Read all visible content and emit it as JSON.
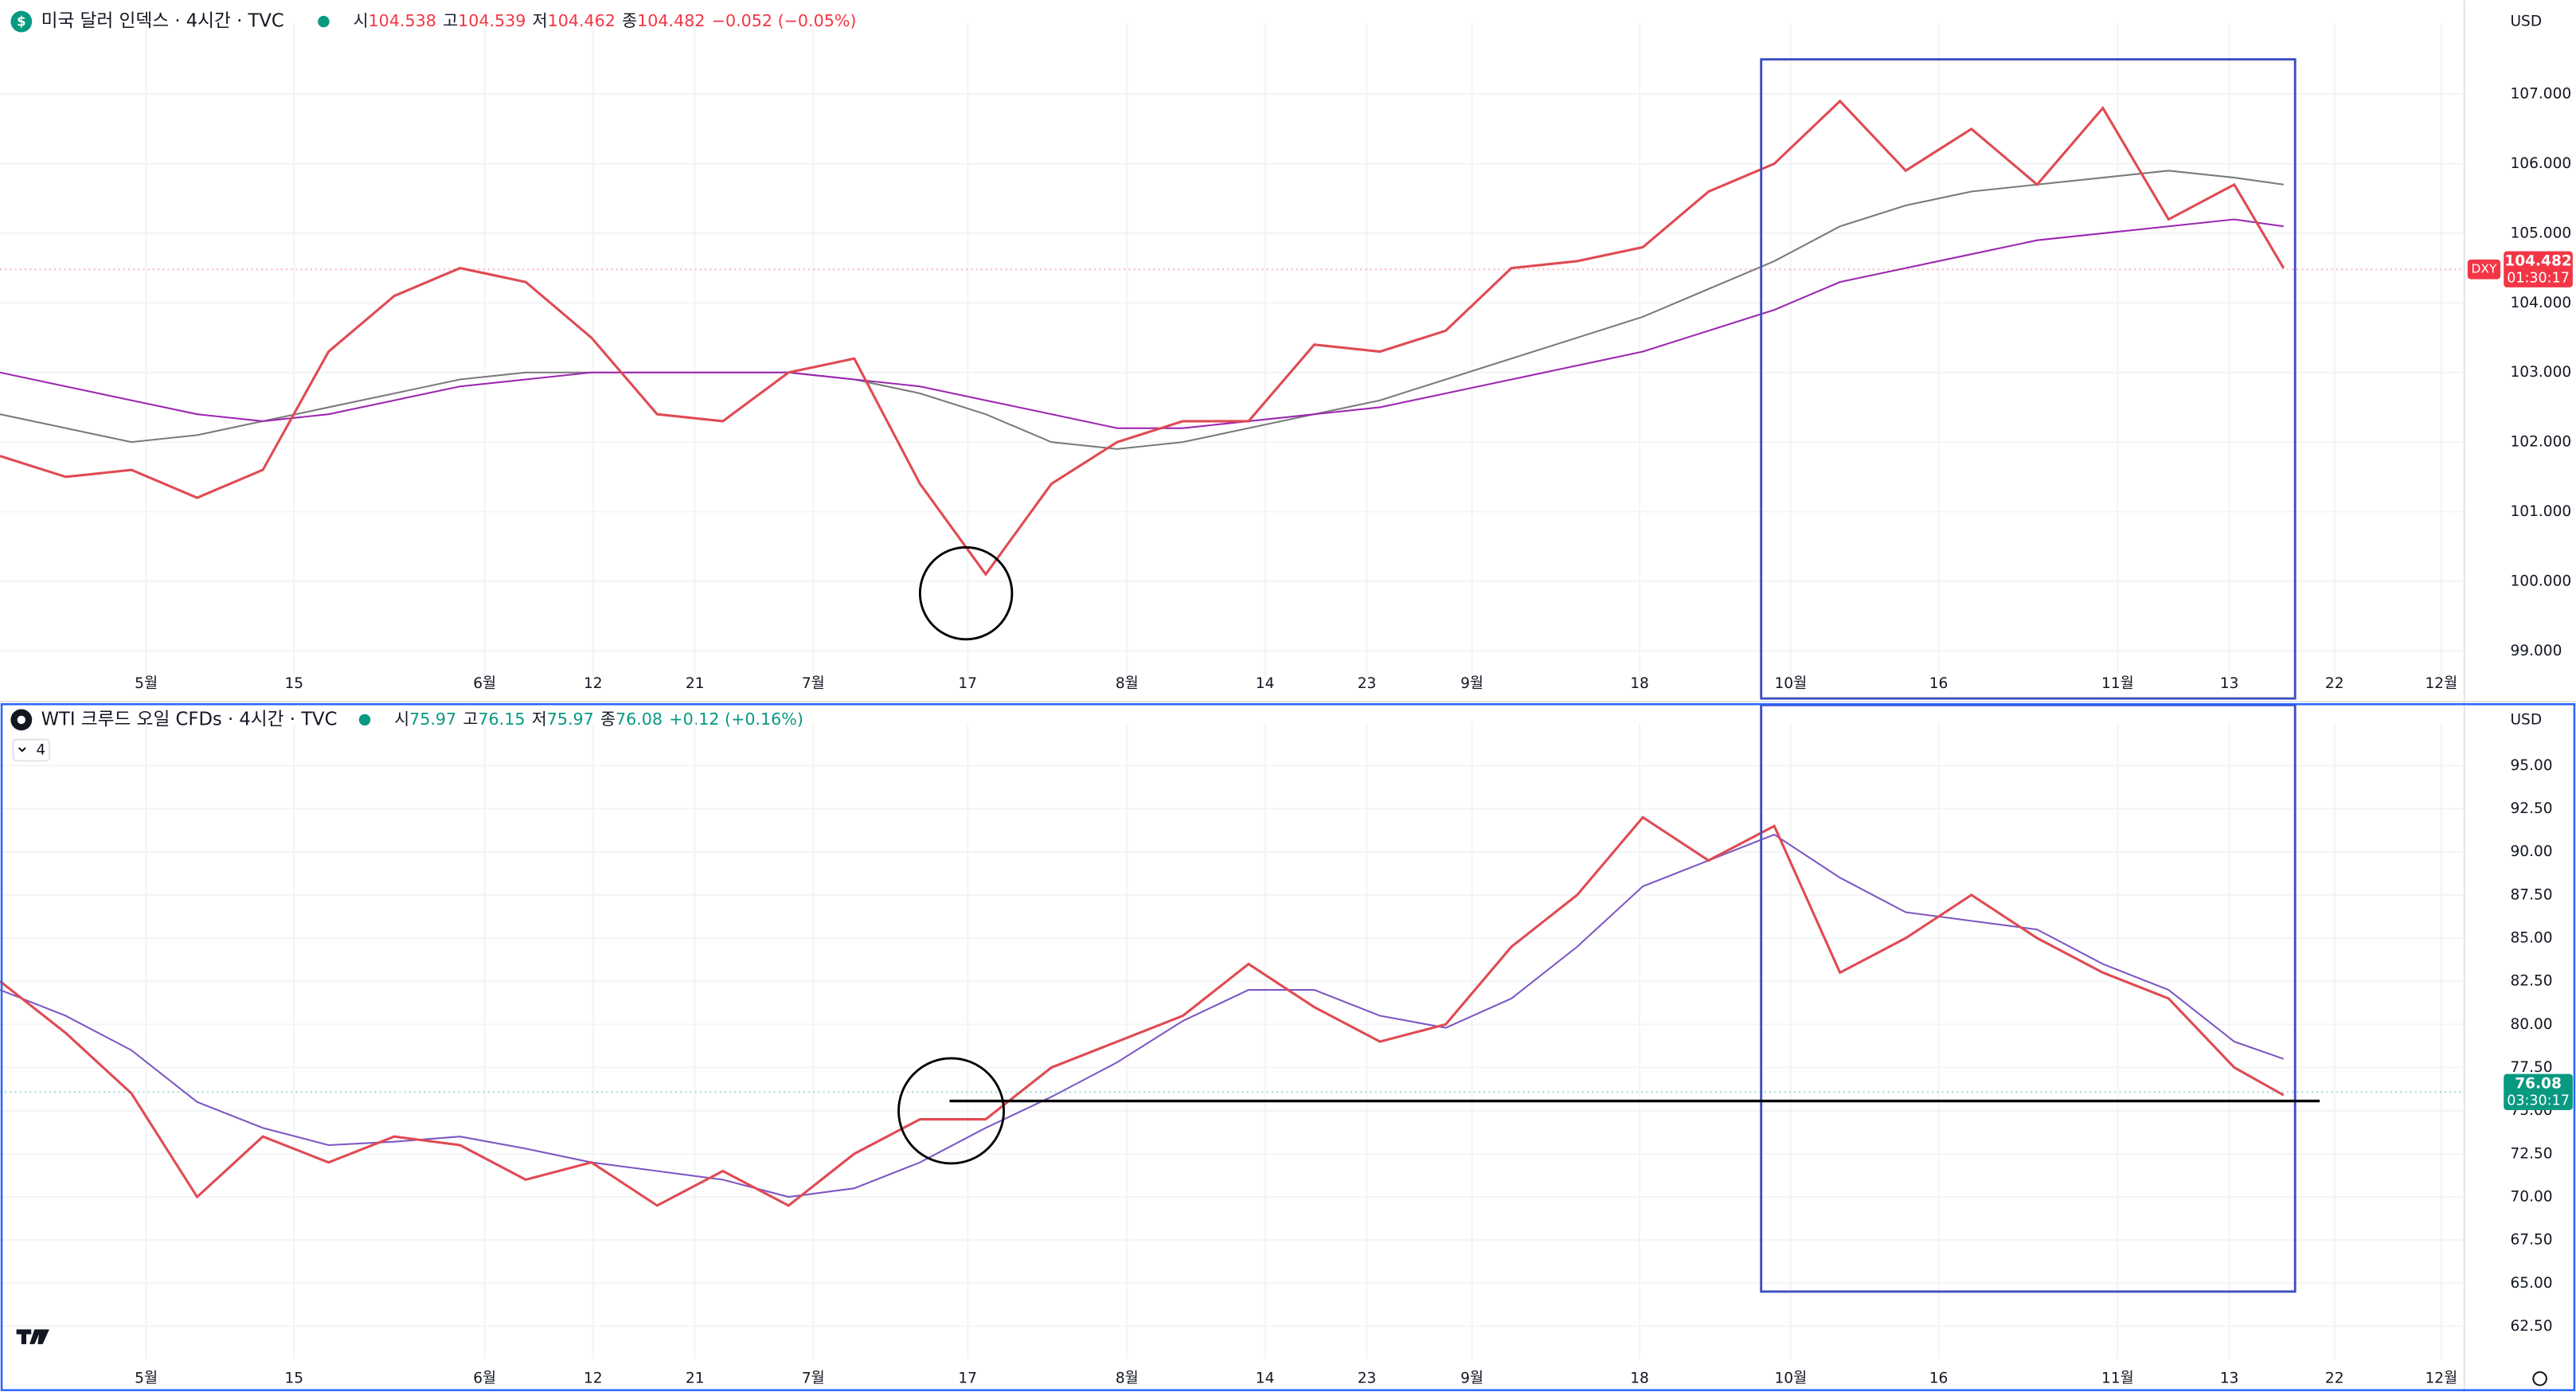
{
  "chart_data": [
    {
      "type": "line",
      "title": "미국 달러 인덱스 · 4시간 · TVC",
      "ohlc": {
        "open_label": "시",
        "open": 104.538,
        "high_label": "고",
        "high": 104.539,
        "low_label": "저",
        "low": 104.462,
        "close_label": "종",
        "close": 104.482,
        "change": "−0.052 (−0.05%)"
      },
      "currency": "USD",
      "symbol": "DXY",
      "last_price": 104.482,
      "countdown": "01:30:17",
      "change_color": "#f23645",
      "last_color": "#f23645",
      "grid": true,
      "xlim": [
        0,
        150
      ],
      "ylim": [
        98.67,
        107.83
      ],
      "yticks": [
        {
          "value": 99,
          "label": "99.000"
        },
        {
          "value": 100,
          "label": "100.000"
        },
        {
          "value": 101,
          "label": "101.000"
        },
        {
          "value": 102,
          "label": "102.000"
        },
        {
          "value": 103,
          "label": "103.000"
        },
        {
          "value": 104,
          "label": "104.000"
        },
        {
          "value": 105,
          "label": "105.000"
        },
        {
          "value": 106,
          "label": "106.000"
        },
        {
          "value": 107,
          "label": "107.000"
        }
      ],
      "xticks": [
        {
          "value": 8.9,
          "label": "5월"
        },
        {
          "value": 17.9,
          "label": "15"
        },
        {
          "value": 29.5,
          "label": "6월"
        },
        {
          "value": 36.1,
          "label": "12"
        },
        {
          "value": 42.3,
          "label": "21"
        },
        {
          "value": 49.5,
          "label": "7월"
        },
        {
          "value": 58.9,
          "label": "17"
        },
        {
          "value": 68.6,
          "label": "8월"
        },
        {
          "value": 77.0,
          "label": "14"
        },
        {
          "value": 83.2,
          "label": "23"
        },
        {
          "value": 89.6,
          "label": "9월"
        },
        {
          "value": 99.8,
          "label": "18"
        },
        {
          "value": 109.0,
          "label": "10월"
        },
        {
          "value": 118.0,
          "label": "16"
        },
        {
          "value": 128.9,
          "label": "11월"
        },
        {
          "value": 135.7,
          "label": "13"
        },
        {
          "value": 142.1,
          "label": "22"
        },
        {
          "value": 148.6,
          "label": "12월"
        }
      ],
      "x": [
        0,
        4,
        8,
        12,
        16,
        20,
        24,
        28,
        32,
        36,
        40,
        44,
        48,
        52,
        56,
        60,
        64,
        68,
        72,
        76,
        80,
        84,
        88,
        92,
        96,
        100,
        104,
        108,
        112,
        116,
        120,
        124,
        128,
        132,
        136,
        139
      ],
      "series": [
        {
          "color": "#7a7a7a",
          "values": [
            102.4,
            102.2,
            102.0,
            102.1,
            102.3,
            102.5,
            102.7,
            102.9,
            103.0,
            103.0,
            103.0,
            103.0,
            103.0,
            102.9,
            102.7,
            102.4,
            102.0,
            101.9,
            102.0,
            102.2,
            102.4,
            102.6,
            102.9,
            103.2,
            103.5,
            103.8,
            104.2,
            104.6,
            105.1,
            105.4,
            105.6,
            105.7,
            105.8,
            105.9,
            105.8,
            105.7
          ]
        },
        {
          "color": "#9c27b0",
          "values": [
            103.0,
            102.8,
            102.6,
            102.4,
            102.3,
            102.4,
            102.6,
            102.8,
            102.9,
            103.0,
            103.0,
            103.0,
            103.0,
            102.9,
            102.8,
            102.6,
            102.4,
            102.2,
            102.2,
            102.3,
            102.4,
            102.5,
            102.7,
            102.9,
            103.1,
            103.3,
            103.6,
            103.9,
            104.3,
            104.5,
            104.7,
            104.9,
            105.0,
            105.1,
            105.2,
            105.1
          ]
        },
        {
          "color": "#e04a52",
          "values": [
            101.8,
            101.5,
            101.6,
            101.2,
            101.6,
            103.3,
            104.1,
            104.5,
            104.3,
            103.5,
            102.4,
            102.3,
            103.0,
            103.2,
            101.4,
            100.1,
            101.4,
            102.0,
            102.3,
            102.3,
            103.4,
            103.3,
            103.6,
            104.5,
            104.6,
            104.8,
            105.6,
            106.0,
            106.9,
            105.9,
            106.5,
            105.7,
            106.8,
            105.2,
            105.7,
            104.5
          ]
        }
      ]
    },
    {
      "type": "line",
      "title": "WTI 크루드 오일 CFDs · 4시간 · TVC",
      "ohlc": {
        "open_label": "시",
        "open": 75.97,
        "high_label": "고",
        "high": 76.15,
        "low_label": "저",
        "low": 75.97,
        "close_label": "종",
        "close": 76.08,
        "change": "+0.12 (+0.16%)"
      },
      "currency": "USD",
      "indicator_count": 4,
      "last_price": 76.08,
      "countdown": "03:30:17",
      "change_color": "#089981",
      "last_color": "#089981",
      "grid": true,
      "xlim": [
        0,
        150
      ],
      "ylim": [
        60.8,
        96.7
      ],
      "yticks": [
        {
          "value": 62.5,
          "label": "62.50"
        },
        {
          "value": 65,
          "label": "65.00"
        },
        {
          "value": 67.5,
          "label": "67.50"
        },
        {
          "value": 70,
          "label": "70.00"
        },
        {
          "value": 72.5,
          "label": "72.50"
        },
        {
          "value": 75,
          "label": "75.00"
        },
        {
          "value": 77.5,
          "label": "77.50"
        },
        {
          "value": 80,
          "label": "80.00"
        },
        {
          "value": 82.5,
          "label": "82.50"
        },
        {
          "value": 85,
          "label": "85.00"
        },
        {
          "value": 87.5,
          "label": "87.50"
        },
        {
          "value": 90,
          "label": "90.00"
        },
        {
          "value": 92.5,
          "label": "92.50"
        },
        {
          "value": 95,
          "label": "95.00"
        }
      ],
      "xticks": [
        {
          "value": 8.9,
          "label": "5월"
        },
        {
          "value": 17.9,
          "label": "15"
        },
        {
          "value": 29.5,
          "label": "6월"
        },
        {
          "value": 36.1,
          "label": "12"
        },
        {
          "value": 42.3,
          "label": "21"
        },
        {
          "value": 49.5,
          "label": "7월"
        },
        {
          "value": 58.9,
          "label": "17"
        },
        {
          "value": 68.6,
          "label": "8월"
        },
        {
          "value": 77.0,
          "label": "14"
        },
        {
          "value": 83.2,
          "label": "23"
        },
        {
          "value": 89.6,
          "label": "9월"
        },
        {
          "value": 99.8,
          "label": "18"
        },
        {
          "value": 109.0,
          "label": "10월"
        },
        {
          "value": 118.0,
          "label": "16"
        },
        {
          "value": 128.9,
          "label": "11월"
        },
        {
          "value": 135.7,
          "label": "13"
        },
        {
          "value": 142.1,
          "label": "22"
        },
        {
          "value": 148.6,
          "label": "12월"
        }
      ],
      "x": [
        0,
        4,
        8,
        12,
        16,
        20,
        24,
        28,
        32,
        36,
        40,
        44,
        48,
        52,
        56,
        60,
        64,
        68,
        72,
        76,
        80,
        84,
        88,
        92,
        96,
        100,
        104,
        108,
        112,
        116,
        120,
        124,
        128,
        132,
        136,
        139
      ],
      "series": [
        {
          "color": "#7e57c2",
          "values": [
            82,
            80.5,
            78.5,
            75.5,
            74.0,
            73.0,
            73.2,
            73.5,
            72.8,
            72.0,
            71.5,
            71.0,
            70.0,
            70.5,
            72.0,
            74.0,
            75.8,
            77.8,
            80.2,
            82.0,
            82.0,
            80.5,
            79.8,
            81.5,
            84.5,
            88.0,
            89.5,
            91.0,
            88.5,
            86.5,
            86.0,
            85.5,
            83.5,
            82.0,
            79.0,
            78.0
          ]
        },
        {
          "color": "#e04a52",
          "values": [
            82.5,
            79.5,
            76.0,
            70.0,
            73.5,
            72.0,
            73.5,
            73.0,
            71.0,
            72.0,
            69.5,
            71.5,
            69.5,
            72.5,
            74.5,
            74.5,
            77.5,
            79.0,
            80.5,
            83.5,
            81.0,
            79.0,
            80.0,
            84.5,
            87.5,
            92.0,
            89.5,
            91.5,
            83.0,
            85.0,
            87.5,
            85.0,
            83.0,
            81.5,
            77.5,
            75.9
          ]
        }
      ]
    }
  ]
}
